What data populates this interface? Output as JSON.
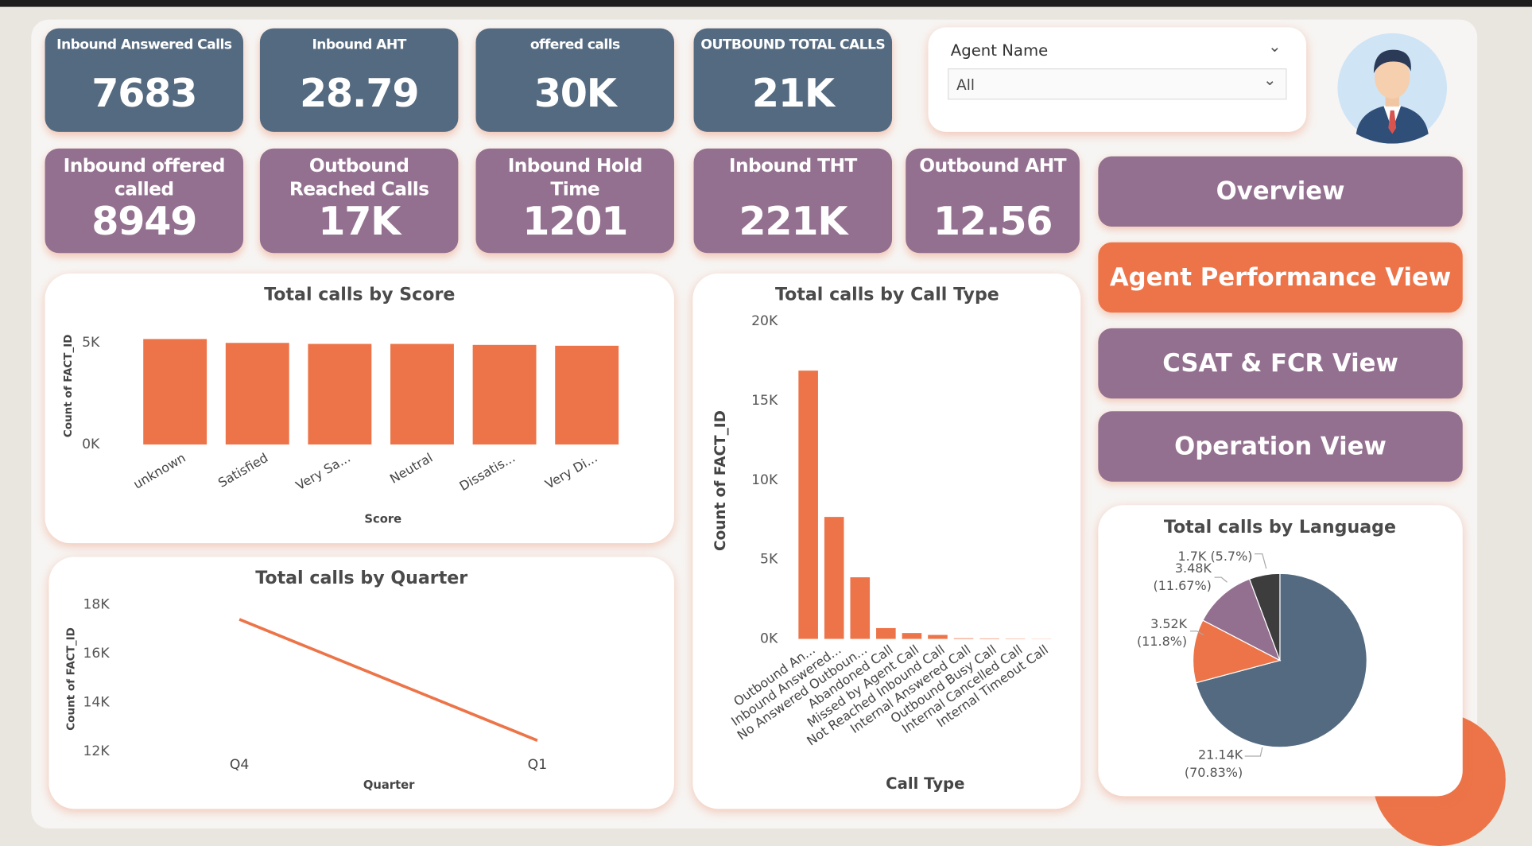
{
  "kpi_rows": [
    {
      "color": "#546a80",
      "cards": [
        {
          "label": "Inbound Answered Calls",
          "value": "7683"
        },
        {
          "label": "Inbound AHT",
          "value": "28.79"
        },
        {
          "label": "offered calls",
          "value": "30K"
        },
        {
          "label": "OUTBOUND TOTAL CALLS",
          "value": "21K"
        }
      ]
    },
    {
      "color": "#93708f",
      "cards": [
        {
          "label": "Inbound offered called",
          "value": "8949"
        },
        {
          "label": "Outbound Reached Calls",
          "value": "17K"
        },
        {
          "label": "Inbound Hold Time",
          "value": "1201"
        },
        {
          "label": "Inbound THT",
          "value": "221K"
        },
        {
          "label": "Outbound AHT",
          "value": "12.56"
        }
      ]
    }
  ],
  "slicer": {
    "label": "Agent Name",
    "selected": "All"
  },
  "nav": [
    {
      "label": "Overview",
      "color": "#93708f"
    },
    {
      "label": "Agent Performance View",
      "color": "#ec7448"
    },
    {
      "label": "CSAT & FCR View",
      "color": "#93708f"
    },
    {
      "label": "Operation View",
      "color": "#93708f"
    }
  ],
  "chart_data": [
    {
      "type": "bar",
      "title": "Total calls by Score",
      "x_label": "Score",
      "y_label": "Count of FACT_ID",
      "color": "#ec7448",
      "categories": [
        "unknown",
        "Satisfied",
        "Very Sa...",
        "Neutral",
        "Dissatis...",
        "Very Di..."
      ],
      "values": [
        5190,
        5000,
        4950,
        4950,
        4900,
        4860
      ],
      "ylim": [
        0,
        5500
      ],
      "yticks": [
        {
          "value": 0,
          "label": "0K"
        },
        {
          "value": 5000,
          "label": "5K"
        }
      ]
    },
    {
      "type": "line",
      "title": "Total calls by Quarter",
      "x_label": "Quarter",
      "y_label": "Count of FACT_ID",
      "color": "#ec7448",
      "categories": [
        "Q4",
        "Q1"
      ],
      "values": [
        17400,
        12440
      ],
      "ylim": [
        11800,
        18200
      ],
      "yticks": [
        {
          "value": 12000,
          "label": "12K"
        },
        {
          "value": 14000,
          "label": "14K"
        },
        {
          "value": 16000,
          "label": "16K"
        },
        {
          "value": 18000,
          "label": "18K"
        }
      ]
    },
    {
      "type": "bar",
      "title": "Total calls by Call Type",
      "x_label": "Call Type",
      "y_label": "Count of FACT_ID",
      "color": "#ec7448",
      "categories": [
        "Outbound An...",
        "Inbound Answered...",
        "No Answered Outboun...",
        "Abandoned Call",
        "Missed by Agent Call",
        "Not Reached Inbound Call",
        "Internal Answered Call",
        "Outbound Busy Call",
        "Internal Cancelled Call",
        "Internal Timeout Call"
      ],
      "values": [
        16900,
        7683,
        3880,
        680,
        370,
        250,
        40,
        30,
        20,
        10
      ],
      "ylim": [
        0,
        20000
      ],
      "yticks": [
        {
          "value": 0,
          "label": "0K"
        },
        {
          "value": 5000,
          "label": "5K"
        },
        {
          "value": 10000,
          "label": "10K"
        },
        {
          "value": 15000,
          "label": "15K"
        },
        {
          "value": 20000,
          "label": "20K"
        }
      ]
    },
    {
      "type": "pie",
      "title": "Total calls by Language",
      "values": [
        21140,
        3520,
        3480,
        1700
      ],
      "value_labels": [
        "21.14K (70.83%)",
        "3.52K (11.8%)",
        "3.48K (11.67%)",
        "1.7K (5.7%)"
      ],
      "colors": [
        "#546a80",
        "#ec7448",
        "#93708f",
        "#3d3d3d"
      ]
    }
  ]
}
